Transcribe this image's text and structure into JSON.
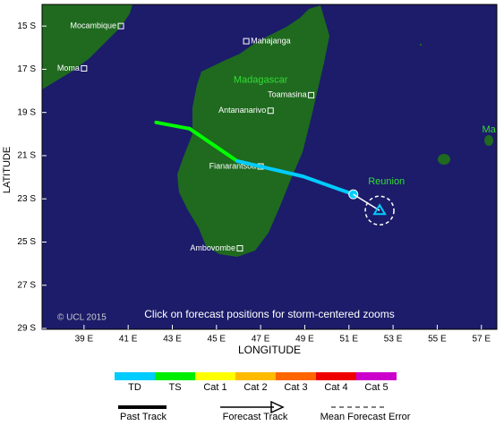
{
  "map": {
    "xlim": [
      37.1,
      57.7
    ],
    "ylim": [
      -29.04,
      -14.0
    ],
    "xticks": [
      {
        "value": 39,
        "label": "39 E"
      },
      {
        "value": 41,
        "label": "41 E"
      },
      {
        "value": 43,
        "label": "43 E"
      },
      {
        "value": 45,
        "label": "45 E"
      },
      {
        "value": 47,
        "label": "47 E"
      },
      {
        "value": 49,
        "label": "49 E"
      },
      {
        "value": 51,
        "label": "51 E"
      },
      {
        "value": 53,
        "label": "53 E"
      },
      {
        "value": 55,
        "label": "55 E"
      },
      {
        "value": 57,
        "label": "57 E"
      }
    ],
    "yticks": [
      {
        "value": -15,
        "label": "15 S"
      },
      {
        "value": -17,
        "label": "17 S"
      },
      {
        "value": -19,
        "label": "19 S"
      },
      {
        "value": -21,
        "label": "21 S"
      },
      {
        "value": -23,
        "label": "23 S"
      },
      {
        "value": -25,
        "label": "25 S"
      },
      {
        "value": -27,
        "label": "27 S"
      },
      {
        "value": -29,
        "label": "29 S"
      }
    ],
    "xlabel": "LONGITUDE",
    "ylabel": "LATITUDE",
    "copyright": "© UCL 2015",
    "hint": "Click on forecast positions for storm-centered zooms",
    "places": [
      {
        "name": "Mocambique",
        "lon": 40.67,
        "lat": -15.0,
        "anchor": "end"
      },
      {
        "name": "Mahajanga",
        "lon": 46.35,
        "lat": -15.7,
        "anchor": "start"
      },
      {
        "name": "Moma",
        "lon": 39.0,
        "lat": -16.96,
        "anchor": "end"
      },
      {
        "name": "Toamasina",
        "lon": 49.29,
        "lat": -18.2,
        "anchor": "end"
      },
      {
        "name": "Antananarivo",
        "lon": 47.45,
        "lat": -18.92,
        "anchor": "end"
      },
      {
        "name": "Fianarantsoa",
        "lon": 47.0,
        "lat": -21.5,
        "anchor": "end"
      },
      {
        "name": "Ambovombe",
        "lon": 46.06,
        "lat": -25.29,
        "anchor": "end"
      }
    ],
    "regions": [
      {
        "name": "Madagascar",
        "lon": 47.0,
        "lat": -17.5
      },
      {
        "name": "Reunion",
        "lon": 52.7,
        "lat": -22.2
      },
      {
        "name": "Mauriti",
        "lon": 57.7,
        "lat": -19.8
      }
    ],
    "track": [
      {
        "lon": 42.27,
        "lat": -19.46,
        "color": "#00ff00"
      },
      {
        "lon": 43.78,
        "lat": -19.75,
        "color": "#00ff00"
      },
      {
        "lon": 45.94,
        "lat": -21.25,
        "color": "#00ccff"
      },
      {
        "lon": 47.0,
        "lat": -21.5,
        "color": "#00ccff"
      },
      {
        "lon": 48.92,
        "lat": -21.96,
        "color": "#00ccff"
      },
      {
        "lon": 51.2,
        "lat": -22.79,
        "color": "#00ccff"
      }
    ],
    "forecast": [
      {
        "lon": 52.39,
        "lat": -23.54,
        "color": "#00ccff"
      }
    ]
  },
  "legend": {
    "categories": [
      {
        "name": "TD",
        "color": "#00ccff"
      },
      {
        "name": "TS",
        "color": "#00ee00"
      },
      {
        "name": "Cat 1",
        "color": "#ffff00"
      },
      {
        "name": "Cat 2",
        "color": "#ffbb00"
      },
      {
        "name": "Cat 3",
        "color": "#ff6600"
      },
      {
        "name": "Cat 4",
        "color": "#ee0000"
      },
      {
        "name": "Cat 5",
        "color": "#cc00cc"
      }
    ],
    "past_track": "Past Track",
    "forecast_track": "Forecast Track",
    "mean_error": "Mean Forecast Error"
  }
}
